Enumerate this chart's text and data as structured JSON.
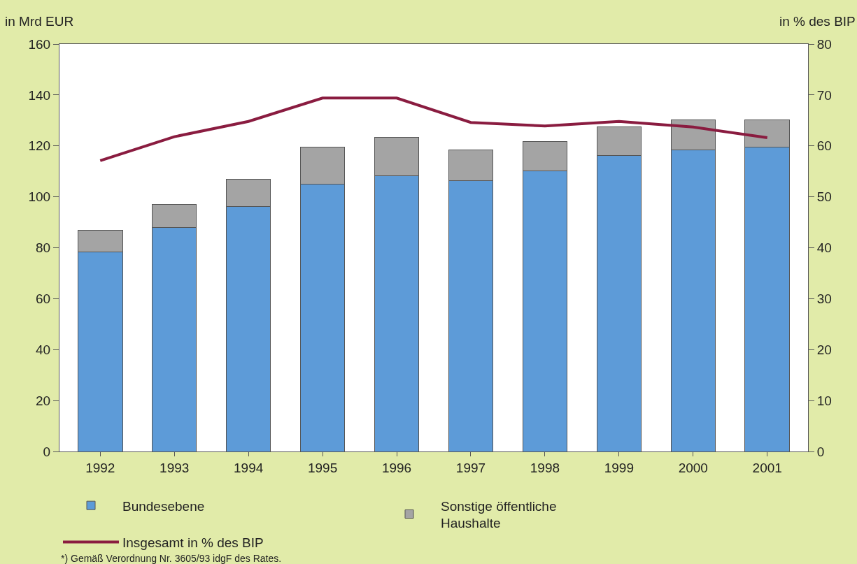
{
  "chart_data": {
    "type": "bar",
    "stacked": true,
    "ylabel": "in Mrd EUR",
    "y2label": "in % des BIP",
    "categories": [
      "1992",
      "1993",
      "1994",
      "1995",
      "1996",
      "1997",
      "1998",
      "1999",
      "2000",
      "2001"
    ],
    "series": [
      {
        "name": "Bundesebene",
        "color": "#5d9bd8",
        "values": [
          78.4,
          87.9,
          96.3,
          105,
          108.3,
          106.4,
          110.2,
          116.2,
          118.4,
          119.5
        ]
      },
      {
        "name": "Sonstige öffentliche Haushalte",
        "color": "#a4a4a4",
        "values": [
          8.4,
          9,
          10.6,
          14.5,
          15,
          12,
          11.4,
          11.4,
          11.9,
          10.6
        ]
      },
      {
        "name": "Insgesamt in % des BIP",
        "type": "line",
        "axis": "y2",
        "color": "#8a1c40",
        "marker": "none",
        "line_style": "solid",
        "values": [
          57.1,
          61.8,
          64.8,
          69.4,
          69.4,
          64.6,
          63.9,
          64.8,
          63.7,
          61.6
        ]
      }
    ],
    "ylim": [
      0,
      160
    ],
    "yticks": [
      0,
      20,
      40,
      60,
      80,
      100,
      120,
      140,
      160
    ],
    "y2lim": [
      0,
      80
    ],
    "y2ticks": [
      0,
      10,
      20,
      30,
      40,
      50,
      60,
      70,
      80
    ],
    "grid": false,
    "legend": "bottom",
    "annotations": [
      "*) Gemäß Verordnung Nr. 3605/93 idgF des Rates."
    ]
  }
}
